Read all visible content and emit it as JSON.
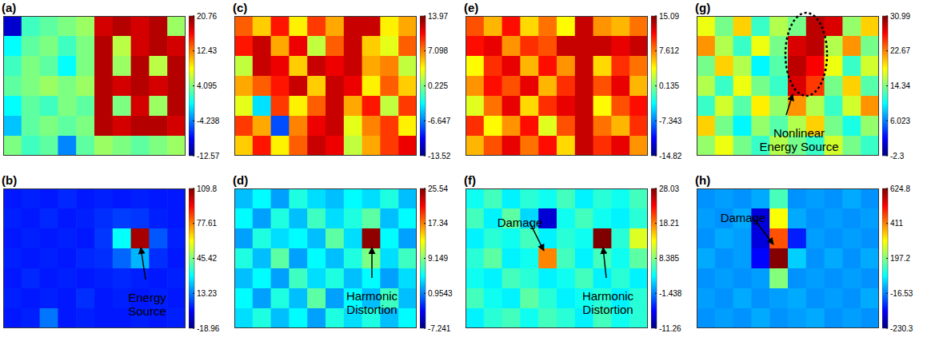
{
  "chart_data": [
    {
      "type": "heatmap",
      "title": "(a)",
      "tick_labels": false,
      "colorbar": {
        "range": [
          -12.57,
          20.76
        ],
        "ticks": [
          20.76,
          12.43,
          4.095,
          -4.238,
          -12.57
        ]
      },
      "annotations": [],
      "cells": [
        [
          -10,
          2,
          3,
          4,
          5,
          18,
          19,
          18,
          19,
          5
        ],
        [
          0,
          3,
          4,
          2,
          4,
          19,
          6,
          18,
          19,
          18
        ],
        [
          2,
          4,
          3,
          0,
          4,
          19,
          5,
          19,
          6,
          19
        ],
        [
          3,
          4,
          5,
          4,
          5,
          19,
          18,
          19,
          18,
          19
        ],
        [
          0,
          3,
          2,
          4,
          3,
          19,
          4,
          18,
          5,
          19
        ],
        [
          -2,
          3,
          4,
          3,
          4,
          19,
          18,
          19,
          19,
          18
        ],
        [
          4,
          2,
          3,
          -4,
          3,
          5,
          4,
          3,
          4,
          5
        ]
      ]
    },
    {
      "type": "heatmap",
      "title": "(b)",
      "tick_labels": false,
      "colorbar": {
        "range": [
          -18.96,
          109.8
        ],
        "ticks": [
          109.8,
          77.61,
          45.42,
          13.23,
          -18.96
        ]
      },
      "annotations": [
        {
          "lines": [
            "Energy",
            "Source"
          ]
        }
      ],
      "cells": [
        [
          0,
          1,
          0,
          2,
          0,
          1,
          0,
          1,
          0,
          0
        ],
        [
          1,
          0,
          2,
          0,
          1,
          3,
          5,
          4,
          1,
          0
        ],
        [
          0,
          1,
          0,
          1,
          0,
          4,
          30,
          105,
          8,
          1
        ],
        [
          1,
          0,
          1,
          0,
          2,
          3,
          10,
          20,
          3,
          0
        ],
        [
          0,
          2,
          0,
          1,
          0,
          1,
          2,
          1,
          0,
          1
        ],
        [
          1,
          0,
          1,
          0,
          3,
          0,
          1,
          0,
          1,
          0
        ],
        [
          0,
          1,
          12,
          0,
          1,
          0,
          0,
          1,
          0,
          1
        ]
      ]
    },
    {
      "type": "heatmap",
      "title": "(c)",
      "tick_labels": false,
      "colorbar": {
        "range": [
          -13.52,
          13.97
        ],
        "ticks": [
          13.97,
          7.098,
          0.225,
          -6.647,
          -13.52
        ]
      },
      "annotations": [],
      "cells": [
        [
          8,
          5,
          10,
          4,
          9,
          6,
          12,
          12,
          4,
          6
        ],
        [
          10,
          12,
          6,
          11,
          2,
          8,
          12,
          5,
          3,
          8
        ],
        [
          2,
          12,
          11,
          5,
          12,
          11,
          12,
          6,
          7,
          2
        ],
        [
          6,
          8,
          10,
          12,
          5,
          12,
          11,
          4,
          8,
          5
        ],
        [
          3,
          -4,
          9,
          4,
          8,
          12,
          6,
          10,
          2,
          9
        ],
        [
          9,
          6,
          -8,
          7,
          11,
          12,
          3,
          7,
          9,
          4
        ],
        [
          5,
          10,
          4,
          8,
          12,
          11,
          2,
          6,
          9,
          11
        ]
      ]
    },
    {
      "type": "heatmap",
      "title": "(d)",
      "tick_labels": false,
      "colorbar": {
        "range": [
          -7.241,
          25.54
        ],
        "ticks": [
          25.54,
          17.34,
          9.149,
          0.9543,
          -7.241
        ]
      },
      "annotations": [
        {
          "lines": [
            "Harmonic",
            "Distortion"
          ]
        }
      ],
      "cells": [
        [
          3,
          5,
          2,
          6,
          4,
          3,
          5,
          4,
          6,
          3
        ],
        [
          5,
          2,
          6,
          3,
          7,
          4,
          6,
          8,
          3,
          5
        ],
        [
          2,
          6,
          4,
          5,
          3,
          8,
          4,
          25,
          5,
          2
        ],
        [
          6,
          3,
          8,
          2,
          5,
          3,
          6,
          9,
          4,
          7
        ],
        [
          3,
          5,
          2,
          7,
          4,
          6,
          3,
          5,
          2,
          4
        ],
        [
          5,
          2,
          6,
          3,
          8,
          2,
          5,
          3,
          7,
          3
        ],
        [
          4,
          6,
          3,
          5,
          2,
          6,
          4,
          6,
          3,
          5
        ]
      ]
    },
    {
      "type": "heatmap",
      "title": "(e)",
      "tick_labels": false,
      "colorbar": {
        "range": [
          -14.82,
          15.09
        ],
        "ticks": [
          15.09,
          7.612,
          0.135,
          -7.343,
          -14.82
        ]
      },
      "annotations": [],
      "cells": [
        [
          9,
          6,
          11,
          5,
          8,
          4,
          13,
          7,
          6,
          8
        ],
        [
          11,
          12,
          7,
          10,
          9,
          13,
          13,
          13,
          12,
          13
        ],
        [
          4,
          10,
          12,
          6,
          11,
          7,
          13,
          5,
          10,
          8
        ],
        [
          7,
          11,
          9,
          12,
          6,
          10,
          13,
          9,
          12,
          6
        ],
        [
          3,
          8,
          12,
          5,
          10,
          12,
          13,
          4,
          9,
          11
        ],
        [
          10,
          4,
          7,
          11,
          3,
          9,
          13,
          8,
          6,
          10
        ],
        [
          6,
          9,
          12,
          8,
          11,
          5,
          13,
          10,
          12,
          7
        ]
      ]
    },
    {
      "type": "heatmap",
      "title": "(f)",
      "tick_labels": false,
      "colorbar": {
        "range": [
          -11.26,
          28.03
        ],
        "ticks": [
          28.03,
          18.21,
          8.385,
          -1.438,
          -11.26
        ]
      },
      "annotations": [
        {
          "lines": [
            "Damage"
          ]
        },
        {
          "lines": [
            "Harmonic",
            "Distortion"
          ]
        }
      ],
      "cells": [
        [
          4,
          6,
          3,
          5,
          4,
          6,
          3,
          5,
          4,
          6
        ],
        [
          6,
          3,
          7,
          2,
          -8,
          4,
          6,
          4,
          3,
          5
        ],
        [
          3,
          5,
          4,
          6,
          3,
          5,
          4,
          28,
          5,
          12
        ],
        [
          5,
          7,
          3,
          4,
          18,
          6,
          3,
          6,
          4,
          7
        ],
        [
          4,
          3,
          6,
          5,
          3,
          4,
          6,
          3,
          5,
          3
        ],
        [
          6,
          4,
          3,
          7,
          5,
          3,
          4,
          5,
          3,
          5
        ],
        [
          3,
          5,
          6,
          4,
          6,
          5,
          3,
          6,
          4,
          5
        ]
      ]
    },
    {
      "type": "heatmap",
      "title": "(g)",
      "tick_labels": false,
      "colorbar": {
        "range": [
          -2.3,
          30.99
        ],
        "ticks": [
          30.99,
          22.67,
          14.34,
          6.023,
          -2.3
        ]
      },
      "annotations": [
        {
          "lines": [
            "Nonlinear",
            "Energy Source"
          ]
        }
      ],
      "cells": [
        [
          18,
          14,
          20,
          12,
          16,
          14,
          29,
          28,
          15,
          20
        ],
        [
          22,
          16,
          12,
          18,
          14,
          28,
          29,
          16,
          22,
          14
        ],
        [
          14,
          20,
          16,
          10,
          13,
          29,
          27,
          18,
          12,
          17
        ],
        [
          16,
          12,
          18,
          14,
          12,
          28,
          25,
          14,
          20,
          13
        ],
        [
          12,
          17,
          13,
          19,
          15,
          22,
          16,
          12,
          17,
          22
        ],
        [
          20,
          14,
          10,
          15,
          13,
          16,
          20,
          14,
          11,
          15
        ],
        [
          15,
          18,
          14,
          12,
          16,
          14,
          12,
          17,
          14,
          12
        ]
      ]
    },
    {
      "type": "heatmap",
      "title": "(h)",
      "tick_labels": false,
      "colorbar": {
        "range": [
          -230.3,
          624.8
        ],
        "ticks": [
          624.8,
          411,
          197.2,
          -16.53,
          -230.3
        ]
      },
      "annotations": [
        {
          "lines": [
            "Damage"
          ]
        }
      ],
      "cells": [
        [
          0,
          10,
          0,
          20,
          150,
          0,
          10,
          0,
          20,
          0
        ],
        [
          10,
          0,
          20,
          -150,
          300,
          20,
          0,
          10,
          0,
          10
        ],
        [
          0,
          20,
          10,
          -150,
          450,
          -100,
          10,
          0,
          10,
          0
        ],
        [
          20,
          0,
          10,
          -120,
          620,
          50,
          0,
          20,
          0,
          20
        ],
        [
          0,
          10,
          0,
          10,
          200,
          0,
          10,
          0,
          10,
          0
        ],
        [
          10,
          0,
          20,
          0,
          10,
          20,
          0,
          10,
          0,
          20
        ],
        [
          0,
          10,
          0,
          20,
          0,
          10,
          20,
          0,
          10,
          0
        ]
      ]
    }
  ]
}
